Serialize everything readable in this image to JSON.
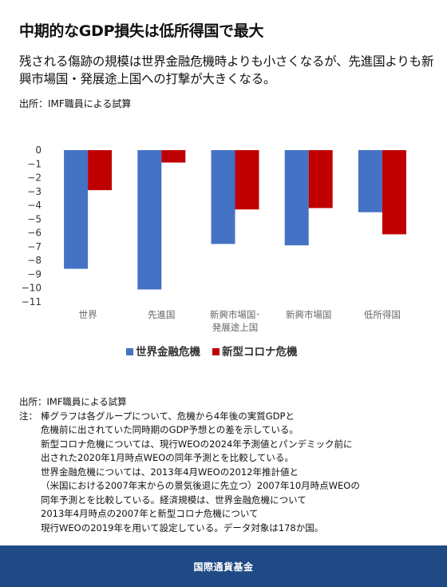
{
  "title": "中期的なGDP損失は低所得国で最大",
  "subtitle": "残される傷跡の規模は世界金融危機時よりも小さくなるが、先進国よりも新興市場国・発展途上国への打撃が大きくなる。",
  "source_top": "出所：IMF職員による試算",
  "chart_data": {
    "type": "bar",
    "categories": [
      [
        "世界"
      ],
      [
        "先進国"
      ],
      [
        "新興市場国･",
        "発展途上国"
      ],
      [
        "新興市場国"
      ],
      [
        "低所得国"
      ]
    ],
    "series": [
      {
        "name": "世界金融危機",
        "color": "#4472c4",
        "values": [
          -8.6,
          -10.1,
          -6.8,
          -6.9,
          -4.5
        ]
      },
      {
        "name": "新型コロナ危機",
        "color": "#c00000",
        "values": [
          -2.9,
          -0.9,
          -4.3,
          -4.2,
          -6.1
        ]
      }
    ],
    "ylim": [
      -11,
      0
    ],
    "yticks": [
      0,
      -1,
      -2,
      -3,
      -4,
      -5,
      -6,
      -7,
      -8,
      -9,
      -10,
      -11
    ],
    "xlabel": "",
    "ylabel": "",
    "grid": false,
    "legend": "bottom-center"
  },
  "source_bottom": "出所：IMF職員による試算",
  "note_key": "注：",
  "note_lines": [
    "棒グラフは各グループについて、危機から4年後の実質GDPと",
    "危機前に出されていた同時期のGDP予想との差を示している。",
    "新型コロナ危機については、現行WEOの2024年予測値とパンデミック前に",
    "出された2020年1月時点WEOの同年予測とを比較している。",
    "世界金融危機については、2013年4月WEOの2012年推計値と",
    "（米国における2007年末からの景気後退に先立つ）2007年10月時点WEOの",
    "同年予測とを比較している。経済規模は、世界金融危機について",
    "2013年4月時点の2007年と新型コロナ危機について",
    "現行WEOの2019年を用いて設定している。データ対象は178か国。"
  ],
  "footer": "国際通貨基金"
}
